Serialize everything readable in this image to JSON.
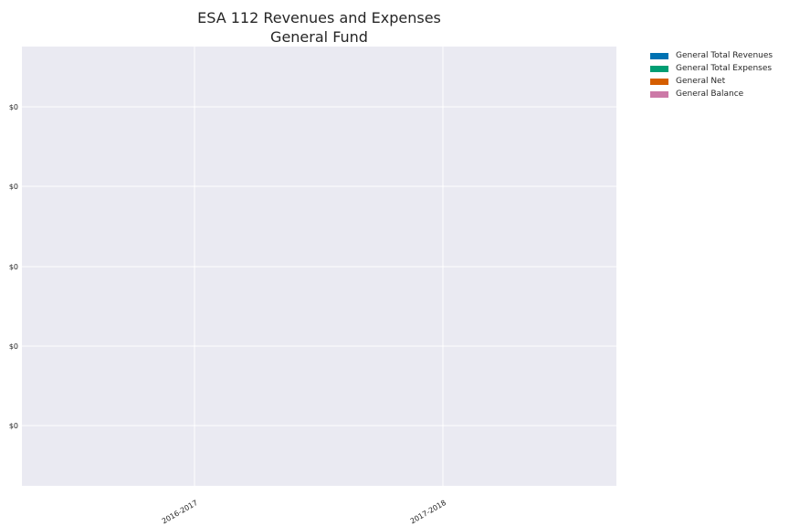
{
  "chart_data": {
    "type": "bar",
    "title": "ESA 112 Revenues and Expenses",
    "subtitle": "General Fund",
    "xlabel": "",
    "ylabel": "",
    "categories": [
      "2016-2017",
      "2017-2018"
    ],
    "series": [
      {
        "name": "General Total Revenues",
        "values": [
          0,
          0
        ],
        "color": "#0072b2"
      },
      {
        "name": "General Total Expenses",
        "values": [
          0,
          0
        ],
        "color": "#009e73"
      },
      {
        "name": "General Net",
        "values": [
          0,
          0
        ],
        "color": "#d55e00"
      },
      {
        "name": "General Balance",
        "values": [
          0,
          0
        ],
        "color": "#cc79a7"
      }
    ],
    "y_tick_labels": [
      "$0",
      "$0",
      "$0",
      "$0",
      "$0"
    ],
    "grid": true,
    "legend_position": "outside-top-right",
    "plot_background": "#eaeaf2",
    "grid_color": "#ffffff"
  }
}
